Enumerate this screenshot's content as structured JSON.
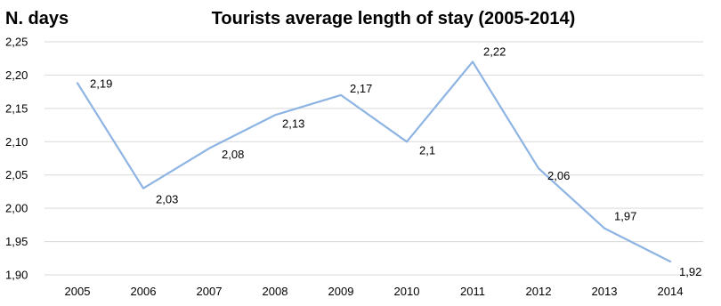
{
  "chart_data": {
    "type": "line",
    "title": "Tourists average length of stay (2005-2014)",
    "ylabel": "N. days",
    "xlabel": "",
    "categories": [
      "2005",
      "2006",
      "2007",
      "2008",
      "2009",
      "2010",
      "2011",
      "2012",
      "2013",
      "2014"
    ],
    "series": [
      {
        "values": [
          2.19,
          2.03,
          2.08,
          2.13,
          2.17,
          2.1,
          2.22,
          2.06,
          1.97,
          1.92
        ],
        "plotted_values": [
          2.188,
          2.03,
          2.09,
          2.14,
          2.17,
          2.1,
          2.22,
          2.06,
          1.97,
          1.92
        ],
        "data_labels": [
          "2,19",
          "2,03",
          "2,08",
          "2,13",
          "2,17",
          "2,1",
          "2,22",
          "2,06",
          "1,97",
          "1,92"
        ],
        "color": "#8eb4e3"
      }
    ],
    "ylim": [
      1.9,
      2.25
    ],
    "yticks": [
      2.25,
      2.2,
      2.15,
      2.1,
      2.05,
      2.0,
      1.95,
      1.9
    ],
    "ytick_labels": [
      "2,25",
      "2,20",
      "2,15",
      "2,10",
      "2,05",
      "2,00",
      "1,95",
      "1,90"
    ],
    "grid": true,
    "legend": "none"
  }
}
